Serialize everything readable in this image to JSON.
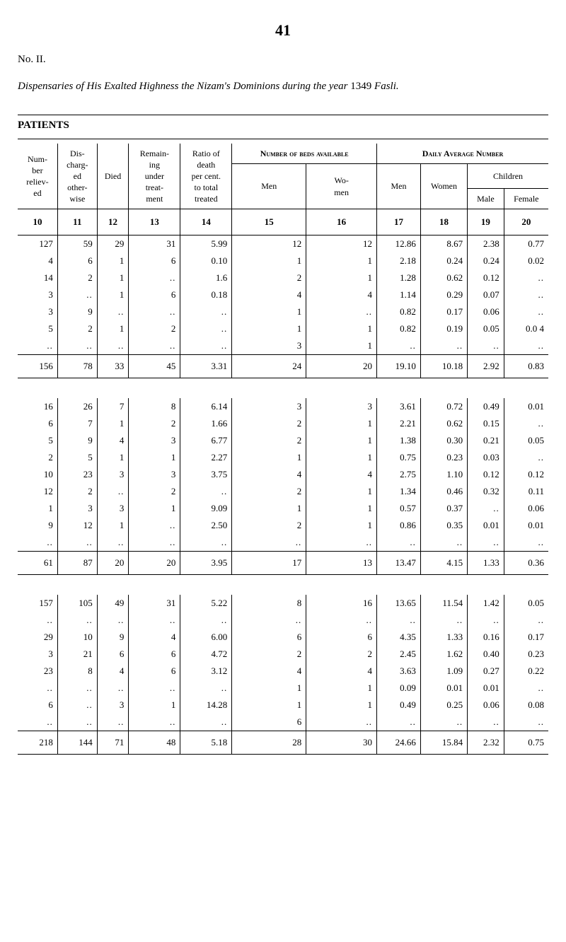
{
  "page_number": "41",
  "header_no": "No. II.",
  "title_prefix": "Dispensaries of His Exalted Highness the Nizam's Dominions during the year ",
  "title_year": "1349",
  "title_suffix": " Fasli.",
  "section_label": "PATIENTS",
  "headers": {
    "number_beds": "Number of beds available",
    "daily_avg": "Daily Average Number",
    "num_reliev": "Number relieved",
    "discharged": "Discharged otherwise",
    "died": "Died",
    "remaining": "Remaining under treatment",
    "ratio_death": "Ratio of death per cent. to total treated",
    "men": "Men",
    "women": "Women",
    "children": "Children",
    "male": "Male",
    "female": "Female"
  },
  "col_numbers": [
    "10",
    "11",
    "12",
    "13",
    "14",
    "15",
    "16",
    "17",
    "18",
    "19",
    "20"
  ],
  "groups": [
    {
      "rows": [
        [
          "127",
          "59",
          "29",
          "31",
          "5.99",
          "12",
          "12",
          "12.86",
          "8.67",
          "2.38",
          "0.77"
        ],
        [
          "4",
          "6",
          "1",
          "6",
          "0.10",
          "1",
          "1",
          "2.18",
          "0.24",
          "0.24",
          "0.02"
        ],
        [
          "14",
          "2",
          "1",
          "..",
          "1.6",
          "2",
          "1",
          "1.28",
          "0.62",
          "0.12",
          ".."
        ],
        [
          "3",
          "..",
          "1",
          "6",
          "0.18",
          "4",
          "4",
          "1.14",
          "0.29",
          "0.07",
          ".."
        ],
        [
          "3",
          "9",
          "..",
          "..",
          "..",
          "1",
          "..",
          "0.82",
          "0.17",
          "0.06",
          ".."
        ],
        [
          "5",
          "2",
          "1",
          "2",
          "..",
          "1",
          "1",
          "0.82",
          "0.19",
          "0.05",
          "0.0 4"
        ],
        [
          "..",
          "..",
          "..",
          "..",
          "..",
          "3",
          "1",
          "..",
          "..",
          "..",
          ".."
        ]
      ],
      "subtotal": [
        "156",
        "78",
        "33",
        "45",
        "3.31",
        "24",
        "20",
        "19.10",
        "10.18",
        "2.92",
        "0.83"
      ]
    },
    {
      "rows": [
        [
          "16",
          "26",
          "7",
          "8",
          "6.14",
          "3",
          "3",
          "3.61",
          "0.72",
          "0.49",
          "0.01"
        ],
        [
          "6",
          "7",
          "1",
          "2",
          "1.66",
          "2",
          "1",
          "2.21",
          "0.62",
          "0.15",
          ".."
        ],
        [
          "5",
          "9",
          "4",
          "3",
          "6.77",
          "2",
          "1",
          "1.38",
          "0.30",
          "0.21",
          "0.05"
        ],
        [
          "2",
          "5",
          "1",
          "1",
          "2.27",
          "1",
          "1",
          "0.75",
          "0.23",
          "0.03",
          ".."
        ],
        [
          "10",
          "23",
          "3",
          "3",
          "3.75",
          "4",
          "4",
          "2.75",
          "1.10",
          "0.12",
          "0.12"
        ],
        [
          "12",
          "2",
          "..",
          "2",
          "..",
          "2",
          "1",
          "1.34",
          "0.46",
          "0.32",
          "0.11"
        ],
        [
          "1",
          "3",
          "3",
          "1",
          "9.09",
          "1",
          "1",
          "0.57",
          "0.37",
          "..",
          "0.06"
        ],
        [
          "9",
          "12",
          "1",
          "..",
          "2.50",
          "2",
          "1",
          "0.86",
          "0.35",
          "0.01",
          "0.01"
        ],
        [
          "..",
          "..",
          "..",
          "..",
          "..",
          "..",
          "..",
          "..",
          "..",
          "..",
          ".."
        ]
      ],
      "subtotal": [
        "61",
        "87",
        "20",
        "20",
        "3.95",
        "17",
        "13",
        "13.47",
        "4.15",
        "1.33",
        "0.36"
      ]
    },
    {
      "rows": [
        [
          "157",
          "105",
          "49",
          "31",
          "5.22",
          "8",
          "16",
          "13.65",
          "11.54",
          "1.42",
          "0.05"
        ],
        [
          "..",
          "..",
          "..",
          "..",
          "..",
          "..",
          "..",
          "..",
          "..",
          "..",
          ".."
        ],
        [
          "29",
          "10",
          "9",
          "4",
          "6.00",
          "6",
          "6",
          "4.35",
          "1.33",
          "0.16",
          "0.17"
        ],
        [
          "3",
          "21",
          "6",
          "6",
          "4.72",
          "2",
          "2",
          "2.45",
          "1.62",
          "0.40",
          "0.23"
        ],
        [
          "23",
          "8",
          "4",
          "6",
          "3.12",
          "4",
          "4",
          "3.63",
          "1.09",
          "0.27",
          "0.22"
        ],
        [
          "..",
          "..",
          "..",
          "..",
          "..",
          "1",
          "1",
          "0.09",
          "0.01",
          "0.01",
          ".."
        ],
        [
          "6",
          "..",
          "3",
          "1",
          "14.28",
          "1",
          "1",
          "0.49",
          "0.25",
          "0.06",
          "0.08"
        ],
        [
          "..",
          "..",
          "..",
          "..",
          "..",
          "6",
          "..",
          "..",
          "..",
          "..",
          ".."
        ]
      ],
      "subtotal": [
        "218",
        "144",
        "71",
        "48",
        "5.18",
        "28",
        "30",
        "24.66",
        "15.84",
        "2.32",
        "0.75"
      ]
    }
  ],
  "styling": {
    "background_color": "#ffffff",
    "text_color": "#000000",
    "border_color": "#000000",
    "body_font_size": 13,
    "header_font_size": 12,
    "title_font_size": 15
  }
}
